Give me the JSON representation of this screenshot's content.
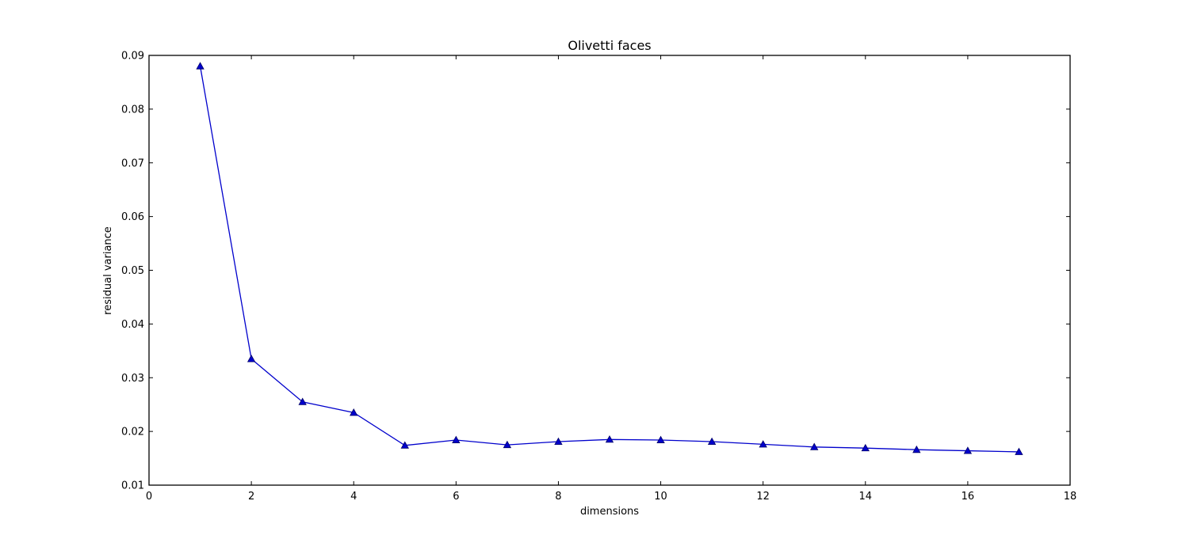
{
  "chart_data": {
    "type": "line",
    "title": "Olivetti faces",
    "xlabel": "dimensions",
    "ylabel": "residual variance",
    "xlim": [
      0,
      18
    ],
    "ylim": [
      0.01,
      0.09
    ],
    "x_ticks": [
      0,
      2,
      4,
      6,
      8,
      10,
      12,
      14,
      16,
      18
    ],
    "y_ticks": [
      0.01,
      0.02,
      0.03,
      0.04,
      0.05,
      0.06,
      0.07,
      0.08,
      0.09
    ],
    "x_tick_labels": [
      "0",
      "2",
      "4",
      "6",
      "8",
      "10",
      "12",
      "14",
      "16",
      "18"
    ],
    "y_tick_labels": [
      "0.01",
      "0.02",
      "0.03",
      "0.04",
      "0.05",
      "0.06",
      "0.07",
      "0.08",
      "0.09"
    ],
    "grid": false,
    "series": [
      {
        "name": "residual variance",
        "color": "#0000cc",
        "marker": "triangle-up",
        "x": [
          1,
          2,
          3,
          4,
          5,
          6,
          7,
          8,
          9,
          10,
          11,
          12,
          13,
          14,
          15,
          16,
          17
        ],
        "values": [
          0.088,
          0.0335,
          0.0255,
          0.0235,
          0.0174,
          0.0184,
          0.0175,
          0.0181,
          0.0185,
          0.0184,
          0.0181,
          0.0176,
          0.0171,
          0.0169,
          0.0166,
          0.0164,
          0.0162
        ]
      }
    ]
  }
}
